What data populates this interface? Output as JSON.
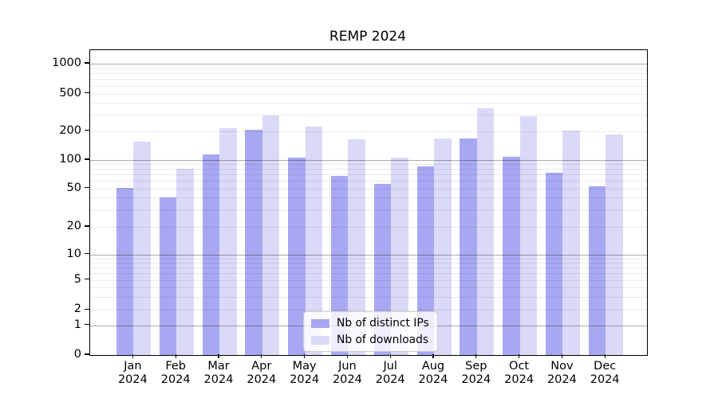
{
  "chart_data": {
    "type": "bar",
    "title": "REMP 2024",
    "categories": [
      "Jan 2024",
      "Feb 2024",
      "Mar 2024",
      "Apr 2024",
      "May 2024",
      "Jun 2024",
      "Jul 2024",
      "Aug 2024",
      "Sep 2024",
      "Oct 2024",
      "Nov 2024",
      "Dec 2024"
    ],
    "series": [
      {
        "name": "Nb of distinct IPs",
        "color": "#a8a8f2",
        "values": [
          51,
          40,
          114,
          206,
          105,
          68,
          56,
          86,
          166,
          108,
          73,
          53
        ]
      },
      {
        "name": "Nb of downloads",
        "color": "#dadaf8",
        "values": [
          155,
          80,
          216,
          291,
          221,
          165,
          106,
          167,
          349,
          289,
          201,
          184
        ]
      }
    ],
    "xlabel": "",
    "ylabel": "",
    "yscale": "symlog",
    "yticks": [
      0,
      1,
      2,
      5,
      10,
      20,
      50,
      100,
      200,
      500,
      1000
    ],
    "ylim": [
      0,
      1400
    ],
    "grid": "on, minor and major, drawn over bars",
    "legend_position": "lower center"
  }
}
